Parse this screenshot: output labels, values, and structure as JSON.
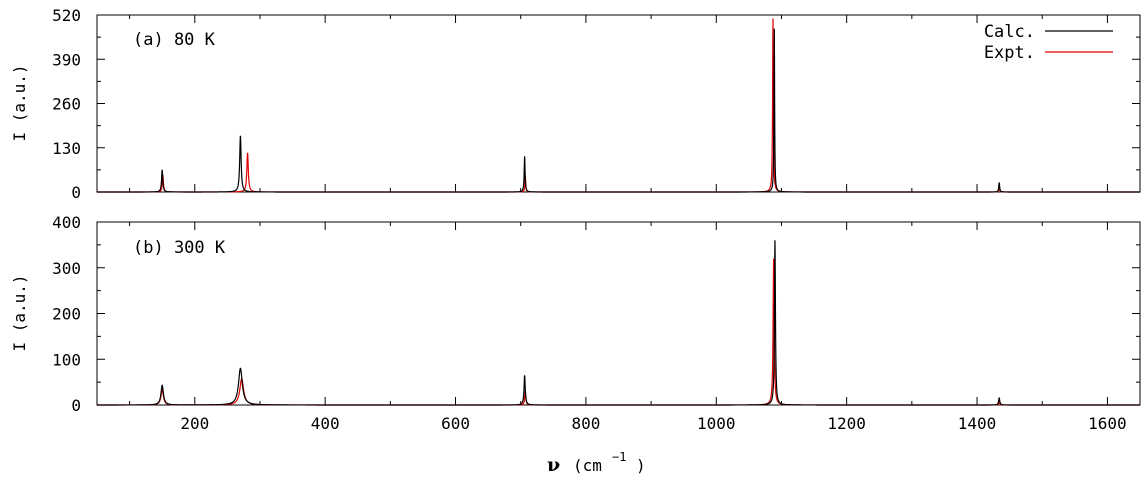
{
  "chart_data": [
    {
      "type": "line",
      "panel_label": "(a) 80 K",
      "ylabel": "I (a.u.)",
      "xlim": [
        50,
        1650
      ],
      "ylim": [
        0,
        520
      ],
      "y_ticks": [
        "0",
        "130",
        "260",
        "390",
        "520"
      ],
      "grid": false,
      "legend_position": "top-right",
      "series": [
        {
          "name": "Calc.",
          "color": "#000000",
          "peaks": [
            {
              "center": 150,
              "height": 65,
              "width": 2.2
            },
            {
              "center": 270,
              "height": 165,
              "width": 2.6
            },
            {
              "center": 706,
              "height": 105,
              "width": 1.6
            },
            {
              "center": 1089,
              "height": 480,
              "width": 1.2
            },
            {
              "center": 1434,
              "height": 28,
              "width": 1.6
            }
          ]
        },
        {
          "name": "Expt.",
          "color": "#e00000",
          "peaks": [
            {
              "center": 151,
              "height": 50,
              "width": 2.0
            },
            {
              "center": 281,
              "height": 115,
              "width": 2.6
            },
            {
              "center": 707,
              "height": 48,
              "width": 1.4
            },
            {
              "center": 1087,
              "height": 510,
              "width": 1.4
            },
            {
              "center": 1434,
              "height": 14,
              "width": 1.6
            }
          ]
        }
      ]
    },
    {
      "type": "line",
      "panel_label": "(b) 300 K",
      "ylabel": "I (a.u.)",
      "xlabel": "(cm",
      "xlabel_symbol": "ν",
      "xlabel_superscript": "−1",
      "xlabel_close": ")",
      "xlim": [
        50,
        1650
      ],
      "ylim": [
        0,
        400
      ],
      "x_ticks": [
        "200",
        "400",
        "600",
        "800",
        "1000",
        "1200",
        "1400",
        "1600"
      ],
      "y_ticks": [
        "0",
        "100",
        "200",
        "300",
        "400"
      ],
      "grid": false,
      "series": [
        {
          "name": "Calc.",
          "color": "#000000",
          "peaks": [
            {
              "center": 150,
              "height": 43,
              "width": 4.5
            },
            {
              "center": 270,
              "height": 80,
              "width": 7.0
            },
            {
              "center": 706,
              "height": 65,
              "width": 2.2
            },
            {
              "center": 1090,
              "height": 360,
              "width": 1.8
            },
            {
              "center": 1434,
              "height": 15,
              "width": 2.2
            }
          ]
        },
        {
          "name": "Expt.",
          "color": "#e00000",
          "peaks": [
            {
              "center": 150,
              "height": 33,
              "width": 4.5
            },
            {
              "center": 272,
              "height": 57,
              "width": 7.0
            },
            {
              "center": 707,
              "height": 30,
              "width": 2.0
            },
            {
              "center": 1088,
              "height": 320,
              "width": 2.0
            },
            {
              "center": 1434,
              "height": 7,
              "width": 2.2
            }
          ]
        }
      ]
    }
  ]
}
